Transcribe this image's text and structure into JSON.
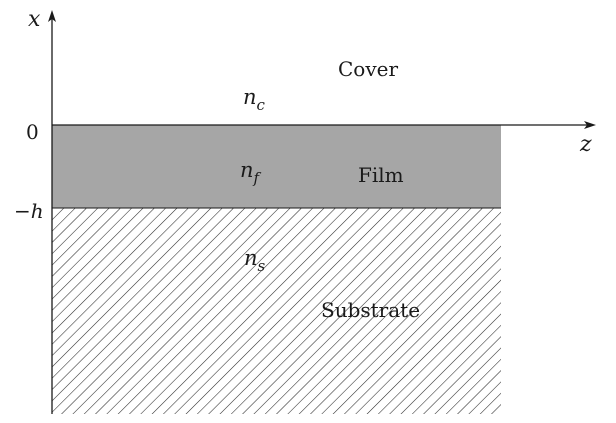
{
  "diagram": {
    "axes": {
      "x_label": "x",
      "z_label": "z"
    },
    "ticks": {
      "zero": "0",
      "minus_h": "−h"
    },
    "regions": {
      "cover": {
        "label": "Cover",
        "index_symbol": "n",
        "index_sub": "c"
      },
      "film": {
        "label": "Film",
        "index_symbol": "n",
        "index_sub": "f",
        "color": "#a6a6a6"
      },
      "substrate": {
        "label": "Substrate",
        "index_symbol": "n",
        "index_sub": "s",
        "hatch_color": "#2b2b2b"
      }
    },
    "colors": {
      "ink": "#1a1a1a",
      "background": "#ffffff"
    }
  }
}
